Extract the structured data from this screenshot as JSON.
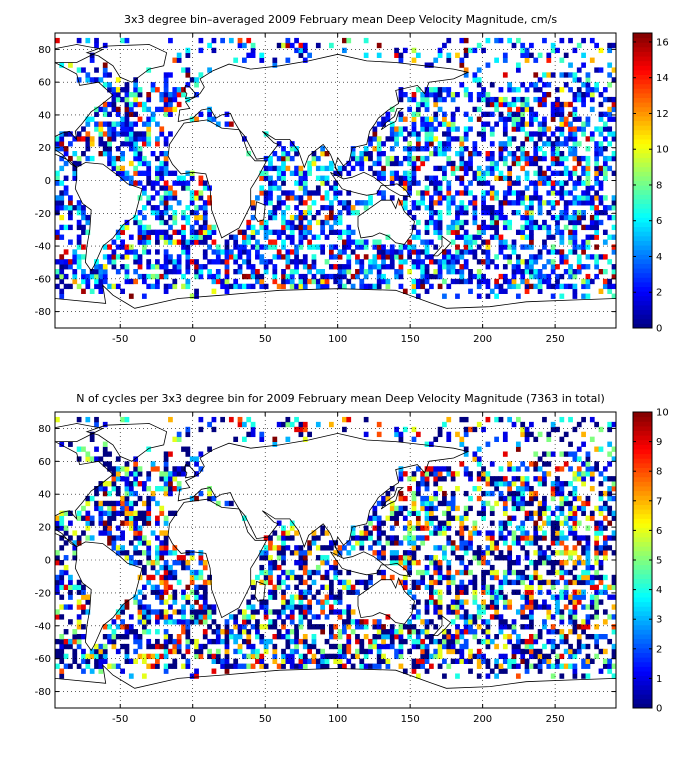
{
  "chart_data": [
    {
      "type": "heatmap",
      "title": "3x3 degree bin–averaged 2009 February mean Deep Velocity Magnitude, cm/s",
      "xlim": [
        -95,
        292
      ],
      "ylim": [
        -90,
        90
      ],
      "xticks": [
        -50,
        0,
        50,
        100,
        150,
        200,
        250
      ],
      "yticks": [
        -80,
        -60,
        -40,
        -20,
        0,
        20,
        40,
        60,
        80
      ],
      "grid": true,
      "bin_size_deg": 3,
      "colorbar": {
        "min": 0,
        "max": 16.5,
        "ticks": [
          0,
          2,
          4,
          6,
          8,
          10,
          12,
          14,
          16
        ],
        "colormap": "jet"
      }
    },
    {
      "type": "heatmap",
      "title": "N of cycles per 3x3 degree bin for 2009 February mean Deep Velocity Magnitude (7363 in total)",
      "xlim": [
        -95,
        292
      ],
      "ylim": [
        -90,
        90
      ],
      "xticks": [
        -50,
        0,
        50,
        100,
        150,
        200,
        250
      ],
      "yticks": [
        -80,
        -60,
        -40,
        -20,
        0,
        20,
        40,
        60,
        80
      ],
      "grid": true,
      "bin_size_deg": 3,
      "colorbar": {
        "min": 0,
        "max": 10,
        "ticks": [
          0,
          1,
          2,
          3,
          4,
          5,
          6,
          7,
          8,
          9,
          10
        ],
        "colormap": "jet"
      }
    }
  ]
}
